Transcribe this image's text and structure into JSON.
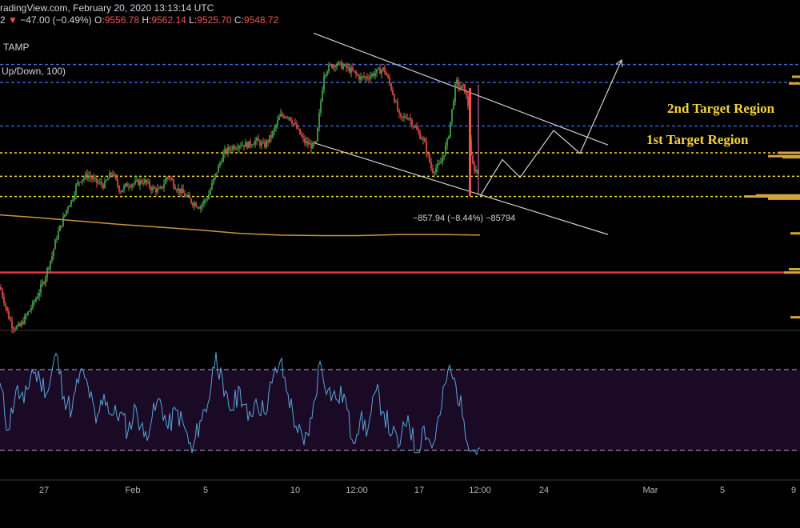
{
  "header": {
    "source_text": "radingView.com, February 20, 2020 13:13:14 UTC",
    "change_prefix": "2",
    "change_arrow": "▼",
    "change_text": "−47.00 (−0.49%)",
    "o_label": "O:",
    "o_value": "9556.78",
    "h_label": "H:",
    "h_value": "9562.14",
    "l_label": "L:",
    "l_value": "9525.70",
    "c_label": "C:",
    "c_value": "9548.72",
    "exchange": "TAMP"
  },
  "indicator": {
    "title": "Up/Down, 100)"
  },
  "annotations": {
    "target2": "2nd Target Region",
    "target1": "1st Target Region",
    "measure": "−857.94 (−8.44%) −85794"
  },
  "colors": {
    "up": "#4caf50",
    "down": "#ef5350",
    "blue_level": "#3d6fe0",
    "yellow_level": "#ffe033",
    "red_level": "#e53935",
    "ma": "#c8963c",
    "oscillator": "#5aa3d8",
    "osc_band": "#1a0a26",
    "target_text": "#f5d33a"
  },
  "chart_data": {
    "type": "candlestick",
    "x_ticks": [
      "27",
      "Feb",
      "5",
      "10",
      "12:00",
      "17",
      "12:00",
      "24",
      "Mar",
      "5",
      "9"
    ],
    "levels": {
      "blue": [
        10510,
        10350,
        9960
      ],
      "yellow": [
        9720,
        9510,
        9330
      ],
      "red": [
        8650
      ]
    },
    "price_path": [
      [
        0,
        8520
      ],
      [
        5,
        8400
      ],
      [
        10,
        8270
      ],
      [
        15,
        8180
      ],
      [
        20,
        8160
      ],
      [
        25,
        8170
      ],
      [
        30,
        8230
      ],
      [
        35,
        8290
      ],
      [
        40,
        8350
      ],
      [
        45,
        8420
      ],
      [
        50,
        8500
      ],
      [
        55,
        8580
      ],
      [
        60,
        8700
      ],
      [
        65,
        8800
      ],
      [
        70,
        8950
      ],
      [
        75,
        9050
      ],
      [
        80,
        9150
      ],
      [
        85,
        9250
      ],
      [
        90,
        9300
      ],
      [
        95,
        9420
      ],
      [
        100,
        9480
      ],
      [
        110,
        9520
      ],
      [
        120,
        9460
      ],
      [
        130,
        9430
      ],
      [
        140,
        9550
      ],
      [
        150,
        9380
      ],
      [
        160,
        9440
      ],
      [
        170,
        9450
      ],
      [
        180,
        9470
      ],
      [
        190,
        9400
      ],
      [
        200,
        9380
      ],
      [
        210,
        9520
      ],
      [
        220,
        9410
      ],
      [
        230,
        9350
      ],
      [
        240,
        9280
      ],
      [
        250,
        9240
      ],
      [
        260,
        9330
      ],
      [
        270,
        9540
      ],
      [
        280,
        9720
      ],
      [
        290,
        9770
      ],
      [
        300,
        9800
      ],
      [
        310,
        9790
      ],
      [
        320,
        9830
      ],
      [
        330,
        9780
      ],
      [
        340,
        9880
      ],
      [
        350,
        10050
      ],
      [
        360,
        10060
      ],
      [
        370,
        9950
      ],
      [
        380,
        9820
      ],
      [
        390,
        9780
      ],
      [
        395,
        9800
      ],
      [
        400,
        10120
      ],
      [
        405,
        10430
      ],
      [
        410,
        10480
      ],
      [
        420,
        10520
      ],
      [
        430,
        10490
      ],
      [
        440,
        10450
      ],
      [
        450,
        10390
      ],
      [
        460,
        10400
      ],
      [
        470,
        10440
      ],
      [
        480,
        10470
      ],
      [
        490,
        10280
      ],
      [
        500,
        10020
      ],
      [
        510,
        10050
      ],
      [
        520,
        9930
      ],
      [
        530,
        9820
      ],
      [
        540,
        9560
      ],
      [
        550,
        9610
      ],
      [
        560,
        9840
      ],
      [
        565,
        10100
      ],
      [
        570,
        10360
      ],
      [
        575,
        10300
      ],
      [
        580,
        10310
      ],
      [
        585,
        10150
      ],
      [
        588,
        9700
      ],
      [
        592,
        9580
      ],
      [
        596,
        9560
      ],
      [
        600,
        9549
      ]
    ],
    "ma_path": [
      [
        0,
        9165
      ],
      [
        40,
        9145
      ],
      [
        100,
        9110
      ],
      [
        150,
        9080
      ],
      [
        200,
        9055
      ],
      [
        250,
        9030
      ],
      [
        300,
        9000
      ],
      [
        350,
        8985
      ],
      [
        400,
        8980
      ],
      [
        450,
        8980
      ],
      [
        500,
        8990
      ],
      [
        550,
        8990
      ],
      [
        600,
        8985
      ]
    ],
    "channel": {
      "upper": [
        [
          392,
          10790
        ],
        [
          760,
          9790
        ]
      ],
      "lower": [
        [
          392,
          9810
        ],
        [
          760,
          8990
        ]
      ]
    },
    "projection": [
      [
        600,
        9330
      ],
      [
        628,
        9660
      ],
      [
        650,
        9500
      ],
      [
        692,
        9920
      ],
      [
        725,
        9715
      ],
      [
        777,
        10550
      ]
    ],
    "osc_x": [
      0,
      10,
      20,
      30,
      40,
      50,
      60,
      70,
      80,
      90,
      100,
      110,
      120,
      130,
      140,
      150,
      160,
      170,
      180,
      190,
      200,
      210,
      220,
      230,
      240,
      250,
      260,
      270,
      280,
      290,
      300,
      310,
      320,
      330,
      340,
      350,
      360,
      370,
      380,
      390,
      400,
      410,
      420,
      430,
      440,
      450,
      460,
      470,
      480,
      490,
      500,
      510,
      520,
      530,
      540,
      550,
      560,
      570,
      580,
      590,
      600
    ],
    "osc_values": [
      70,
      35,
      65,
      55,
      80,
      72,
      64,
      92,
      60,
      50,
      78,
      68,
      40,
      62,
      46,
      48,
      34,
      52,
      30,
      44,
      58,
      36,
      50,
      38,
      18,
      42,
      55,
      93,
      60,
      50,
      66,
      42,
      58,
      48,
      70,
      86,
      62,
      38,
      24,
      44,
      86,
      65,
      58,
      62,
      28,
      42,
      36,
      64,
      48,
      32,
      24,
      46,
      18,
      38,
      22,
      46,
      80,
      68,
      42,
      20,
      22
    ],
    "osc_bands": [
      80,
      20
    ]
  }
}
